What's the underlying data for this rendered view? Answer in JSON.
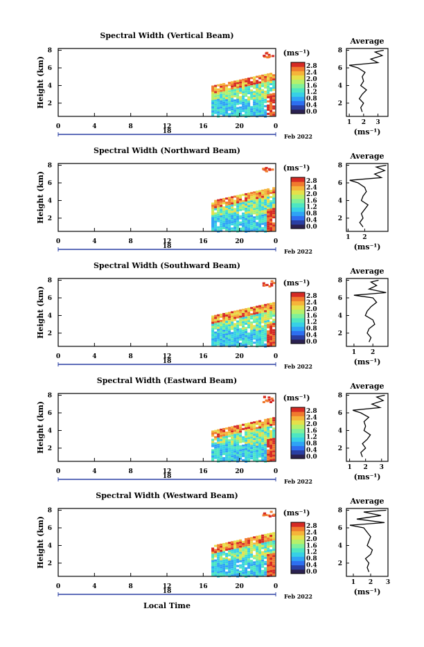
{
  "figure": {
    "xlabel": "Local Time",
    "date_label": "Feb 2022",
    "day_label": "18",
    "colorbar_units": "(ms⁻¹)",
    "avg_title": "Average",
    "avg_xlabel": "(ms⁻¹)",
    "ylabel": "Height (km)",
    "colormap": [
      "#2b2150",
      "#2a3fa3",
      "#2e6ff0",
      "#2fa3f5",
      "#37d0e6",
      "#4de6c2",
      "#7ff09a",
      "#b6f06a",
      "#e6e04a",
      "#f5b43a",
      "#f07a2e",
      "#d62a24"
    ]
  },
  "chart_data": [
    {
      "type": "heatmap",
      "title": "Spectral Width (Vertical Beam)",
      "xticks": [
        "0",
        "4",
        "8",
        "12",
        "16",
        "20",
        "0"
      ],
      "yticks": [
        "2",
        "4",
        "6",
        "8"
      ],
      "ylim": [
        0.5,
        8.2
      ],
      "xlim": [
        0,
        24
      ],
      "colorbar_ticks": [
        "2.8",
        "2.4",
        "2.0",
        "1.6",
        "1.2",
        "0.8",
        "0.4",
        "0.0"
      ],
      "average_profile": {
        "xticks": [
          "1",
          "2",
          "3"
        ],
        "xlim": [
          0.8,
          3.7
        ],
        "yticks": [
          "2",
          "4",
          "6",
          "8"
        ],
        "heights": [
          1.0,
          1.5,
          2.0,
          2.5,
          3.0,
          3.5,
          4.0,
          4.5,
          5.0,
          5.5,
          6.0,
          6.3,
          6.6,
          7.0,
          7.4,
          7.8,
          8.0
        ],
        "values": [
          1.9,
          1.8,
          2.0,
          1.7,
          1.9,
          2.2,
          1.8,
          2.0,
          1.9,
          2.1,
          1.6,
          1.0,
          3.0,
          2.5,
          3.3,
          2.8,
          3.4
        ]
      }
    },
    {
      "type": "heatmap",
      "title": "Spectral Width (Northward Beam)",
      "xticks": [
        "0",
        "4",
        "8",
        "12",
        "16",
        "20",
        "0"
      ],
      "yticks": [
        "2",
        "4",
        "6",
        "8"
      ],
      "ylim": [
        0.5,
        8.2
      ],
      "xlim": [
        0,
        24
      ],
      "colorbar_ticks": [
        "2.8",
        "2.4",
        "2.0",
        "1.6",
        "1.2",
        "0.8",
        "0.4",
        "0.0"
      ],
      "average_profile": {
        "xticks": [
          "1",
          "2"
        ],
        "xlim": [
          0.9,
          3.4
        ],
        "yticks": [
          "2",
          "4",
          "6",
          "8"
        ],
        "heights": [
          1.0,
          1.5,
          2.0,
          2.5,
          3.0,
          3.5,
          4.0,
          4.5,
          5.0,
          5.5,
          6.0,
          6.3,
          6.6,
          7.0,
          7.4,
          7.8,
          8.0
        ],
        "values": [
          1.9,
          1.7,
          1.9,
          1.8,
          2.0,
          2.2,
          1.8,
          1.9,
          2.1,
          2.0,
          1.6,
          1.1,
          3.0,
          2.6,
          3.2,
          2.7,
          3.3
        ]
      }
    },
    {
      "type": "heatmap",
      "title": "Spectral Width (Southward Beam)",
      "xticks": [
        "0",
        "4",
        "8",
        "12",
        "16",
        "20",
        "0"
      ],
      "yticks": [
        "2",
        "4",
        "6",
        "8"
      ],
      "ylim": [
        0.5,
        8.2
      ],
      "xlim": [
        0,
        24
      ],
      "colorbar_ticks": [
        "2.8",
        "2.4",
        "2.0",
        "1.6",
        "1.2",
        "0.8",
        "0.4",
        "0.0"
      ],
      "average_profile": {
        "xticks": [
          "1",
          "2"
        ],
        "xlim": [
          0.6,
          2.8
        ],
        "yticks": [
          "2",
          "4",
          "6",
          "8"
        ],
        "heights": [
          1.0,
          1.5,
          2.0,
          2.5,
          3.0,
          3.5,
          4.0,
          4.5,
          5.0,
          5.5,
          6.0,
          6.3,
          6.6,
          7.0,
          7.4,
          7.8,
          8.0
        ],
        "values": [
          1.8,
          1.9,
          1.7,
          1.8,
          2.1,
          2.0,
          1.6,
          1.7,
          1.9,
          2.2,
          2.0,
          1.0,
          2.7,
          1.8,
          2.2,
          1.9,
          2.3
        ]
      }
    },
    {
      "type": "heatmap",
      "title": "Spectral Width (Eastward Beam)",
      "xticks": [
        "0",
        "4",
        "8",
        "12",
        "16",
        "20",
        "0"
      ],
      "yticks": [
        "2",
        "4",
        "6",
        "8"
      ],
      "ylim": [
        0.5,
        8.2
      ],
      "xlim": [
        0,
        24
      ],
      "colorbar_ticks": [
        "2.8",
        "2.4",
        "2.0",
        "1.6",
        "1.2",
        "0.8",
        "0.4",
        "0.0"
      ],
      "average_profile": {
        "xticks": [
          "1",
          "2",
          "3"
        ],
        "xlim": [
          0.8,
          3.4
        ],
        "yticks": [
          "2",
          "4",
          "6",
          "8"
        ],
        "heights": [
          1.0,
          1.5,
          2.0,
          2.5,
          3.0,
          3.5,
          4.0,
          4.5,
          5.0,
          5.5,
          6.0,
          6.3,
          6.6,
          7.0,
          7.4,
          7.8,
          8.0
        ],
        "values": [
          1.8,
          1.7,
          2.0,
          1.8,
          2.1,
          2.3,
          1.9,
          2.0,
          1.9,
          2.2,
          1.7,
          1.2,
          2.9,
          2.4,
          3.1,
          2.7,
          3.2
        ]
      }
    },
    {
      "type": "heatmap",
      "title": "Spectral Width (Westward Beam)",
      "xticks": [
        "0",
        "4",
        "8",
        "12",
        "16",
        "20",
        "0"
      ],
      "yticks": [
        "2",
        "4",
        "6",
        "8"
      ],
      "ylim": [
        0.5,
        8.2
      ],
      "xlim": [
        0,
        24
      ],
      "colorbar_ticks": [
        "2.8",
        "2.4",
        "2.0",
        "1.6",
        "1.2",
        "0.8",
        "0.4",
        "0.0"
      ],
      "average_profile": {
        "xticks": [
          "1",
          "2",
          "3"
        ],
        "xlim": [
          0.6,
          3.0
        ],
        "yticks": [
          "2",
          "4",
          "6",
          "8"
        ],
        "heights": [
          1.0,
          1.5,
          2.0,
          2.5,
          3.0,
          3.5,
          4.0,
          4.5,
          5.0,
          5.5,
          6.0,
          6.3,
          6.6,
          7.0,
          7.4,
          7.8,
          8.0
        ],
        "values": [
          1.9,
          1.8,
          1.9,
          1.7,
          2.0,
          2.1,
          1.8,
          1.9,
          2.0,
          1.8,
          1.6,
          0.8,
          2.8,
          1.2,
          2.6,
          1.6,
          2.9
        ]
      }
    }
  ]
}
